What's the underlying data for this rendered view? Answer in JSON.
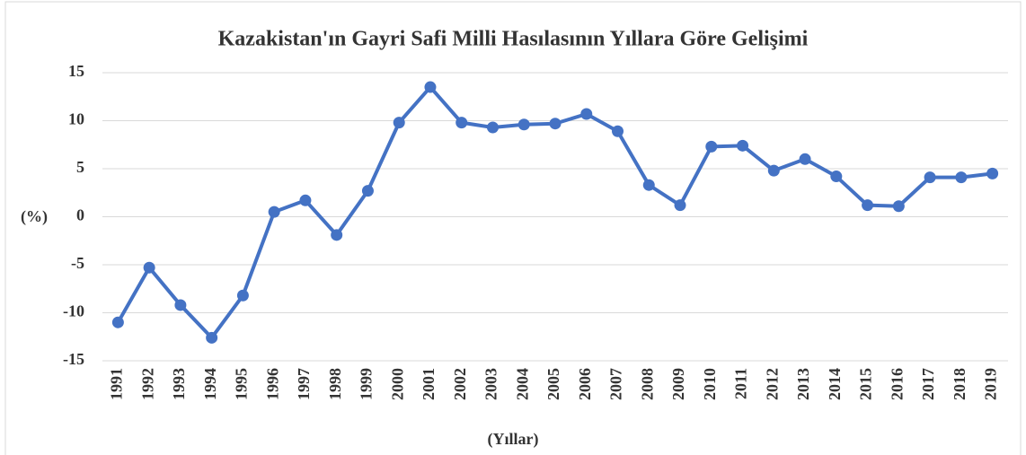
{
  "chart_data": {
    "type": "line",
    "title": "Kazakistan'ın Gayri Safi Milli Hasılasının Yıllara Göre Gelişimi",
    "y_label": "(%)",
    "x_label": "(Yıllar)",
    "categories": [
      "1991",
      "1992",
      "1993",
      "1994",
      "1995",
      "1996",
      "1997",
      "1998",
      "1999",
      "2000",
      "2001",
      "2002",
      "2003",
      "2004",
      "2005",
      "2006",
      "2007",
      "2008",
      "2009",
      "2010",
      "2011",
      "2012",
      "2013",
      "2014",
      "2015",
      "2016",
      "2017",
      "2018",
      "2019"
    ],
    "values": [
      -11.0,
      -5.3,
      -9.2,
      -12.6,
      -8.2,
      0.5,
      1.7,
      -1.9,
      2.7,
      9.8,
      13.5,
      9.8,
      9.3,
      9.6,
      9.7,
      10.7,
      8.9,
      3.3,
      1.2,
      7.3,
      7.4,
      4.8,
      6.0,
      4.2,
      1.2,
      1.1,
      4.1,
      4.1,
      4.5
    ],
    "color": "#4472c4",
    "ylim": [
      -15,
      15
    ],
    "yticks": [
      -15,
      -10,
      -5,
      0,
      5,
      10,
      15
    ],
    "grid": true
  }
}
